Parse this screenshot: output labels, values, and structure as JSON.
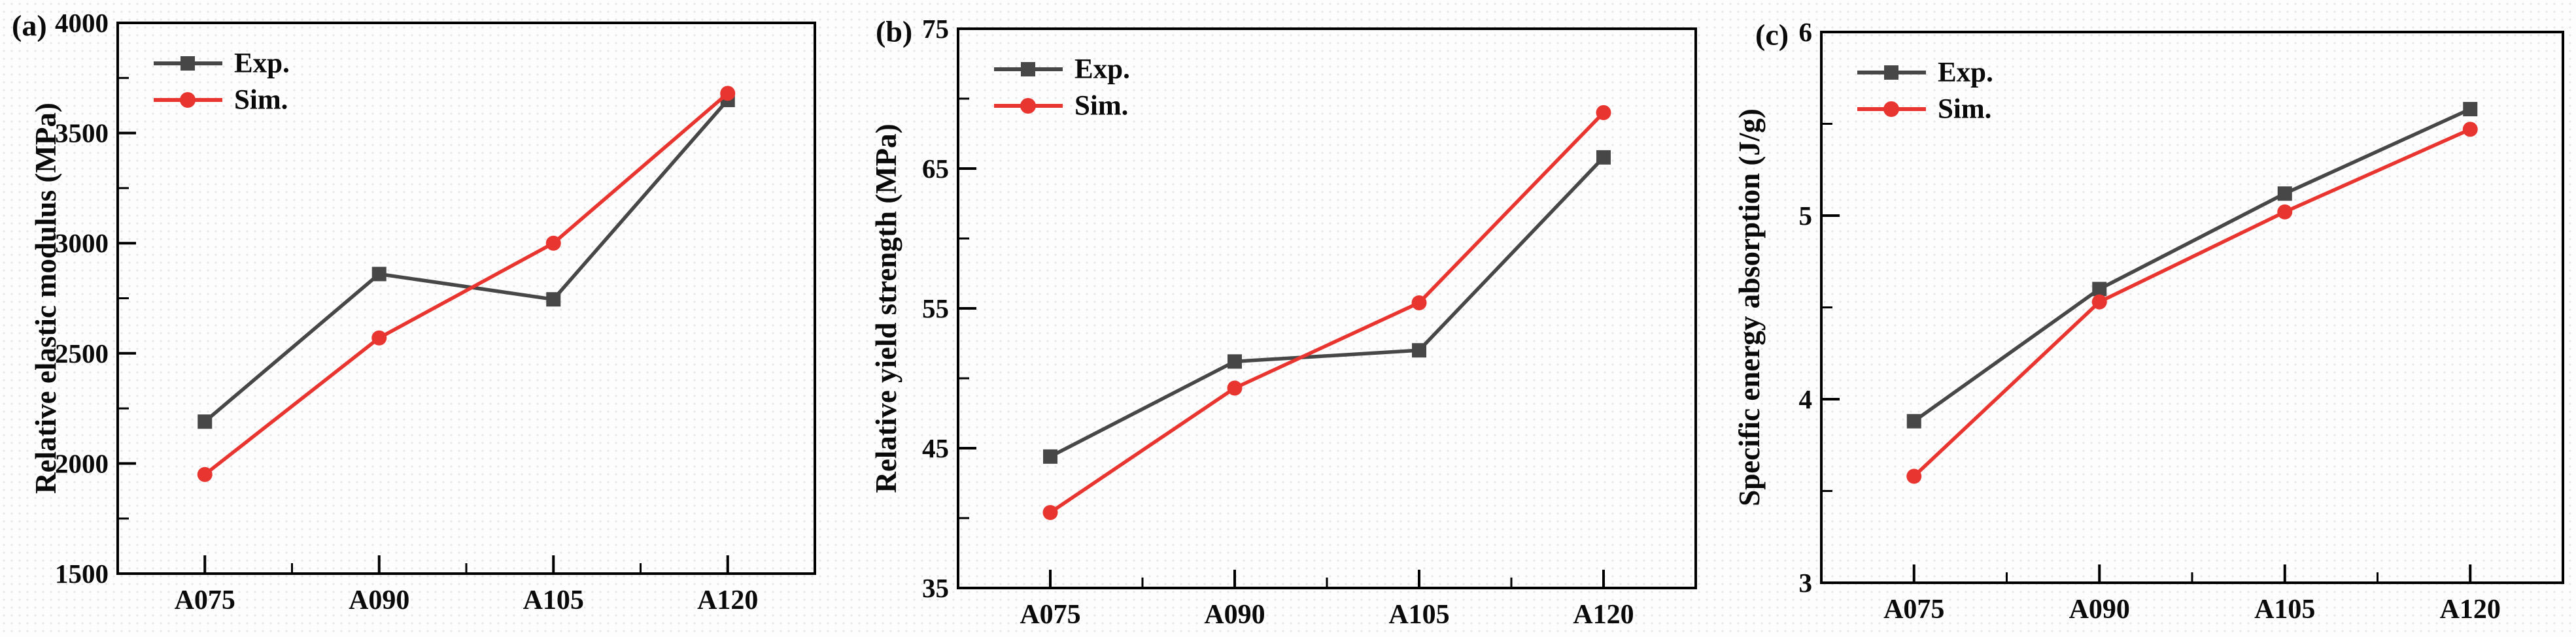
{
  "figure": {
    "description": "Comparison of experimental and simulated mechanical properties for lattice samples A075-A120",
    "colors": {
      "exp_series": "#474747",
      "sim_series": "#e8352f",
      "axis": "#000000",
      "text": "#0a0a0a",
      "background": "#fdfdfd"
    },
    "legend_labels": [
      "Exp.",
      "Sim."
    ]
  },
  "chart_data": [
    {
      "type": "line",
      "panel_label": "(a)",
      "title": "",
      "xlabel": "",
      "ylabel": "Relative elastic modulus (MPa)",
      "ylim": [
        1500,
        4000
      ],
      "ymajor": 500,
      "yminor": 250,
      "grid": false,
      "legend_position": "top-left-inside",
      "categories": [
        "A075",
        "A090",
        "A105",
        "A120"
      ],
      "series": [
        {
          "name": "Exp.",
          "marker": "square",
          "color": "#474747",
          "values": [
            2190,
            2860,
            2745,
            3650
          ]
        },
        {
          "name": "Sim.",
          "marker": "circle",
          "color": "#e8352f",
          "values": [
            1950,
            2570,
            3000,
            3680
          ]
        }
      ]
    },
    {
      "type": "line",
      "panel_label": "(b)",
      "title": "",
      "xlabel": "",
      "ylabel": "Relative yield strength (MPa)",
      "ylim": [
        35,
        75
      ],
      "ymajor": 10,
      "yminor": 5,
      "grid": false,
      "legend_position": "top-left-inside",
      "categories": [
        "A075",
        "A090",
        "A105",
        "A120"
      ],
      "series": [
        {
          "name": "Exp.",
          "marker": "square",
          "color": "#474747",
          "values": [
            44.4,
            51.2,
            52.0,
            65.8
          ]
        },
        {
          "name": "Sim.",
          "marker": "circle",
          "color": "#e8352f",
          "values": [
            40.4,
            49.3,
            55.4,
            69.0
          ]
        }
      ]
    },
    {
      "type": "line",
      "panel_label": "(c)",
      "title": "",
      "xlabel": "",
      "ylabel": "Specific energy absorption (J/g)",
      "ylim": [
        3,
        6
      ],
      "ymajor": 1,
      "yminor": 0.5,
      "grid": false,
      "legend_position": "top-left-inside",
      "categories": [
        "A075",
        "A090",
        "A105",
        "A120"
      ],
      "series": [
        {
          "name": "Exp.",
          "marker": "square",
          "color": "#474747",
          "values": [
            3.88,
            4.6,
            5.12,
            5.58
          ]
        },
        {
          "name": "Sim.",
          "marker": "circle",
          "color": "#e8352f",
          "values": [
            3.58,
            4.53,
            5.02,
            5.47
          ]
        }
      ]
    }
  ]
}
